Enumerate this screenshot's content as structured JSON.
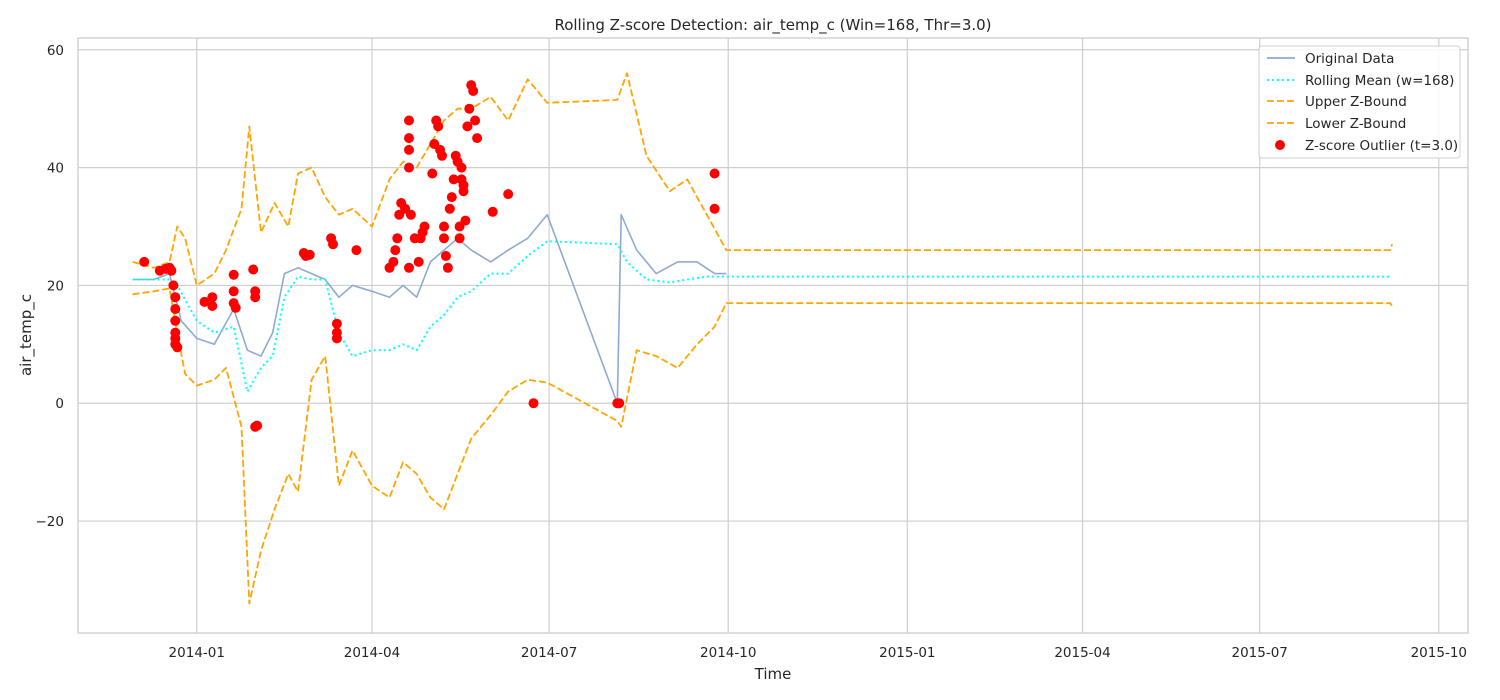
{
  "chart_data": {
    "type": "line",
    "title": "Rolling Z-score Detection: air_temp_c (Win=168, Thr=3.0)",
    "xlabel": "Time",
    "ylabel": "air_temp_c",
    "xlim": [
      "2013-11-01",
      "2015-10-16"
    ],
    "ylim": [
      -39,
      62
    ],
    "x_ticks": [
      "2014-01",
      "2014-04",
      "2014-07",
      "2014-10",
      "2015-01",
      "2015-04",
      "2015-07",
      "2015-10"
    ],
    "y_ticks": [
      -20,
      0,
      20,
      40,
      60
    ],
    "y_tick_labels": [
      "−20",
      "0",
      "20",
      "40",
      "60"
    ],
    "grid": true,
    "legend_position": "top-right",
    "colors": {
      "original": "#8eaad1",
      "mean": "#00ffff",
      "bound": "#ffa500",
      "outlier": "#ff0000"
    },
    "series": [
      {
        "name": "Original Data",
        "style": "solid",
        "x": [
          "2013-11-29",
          "2013-12-10",
          "2013-12-18",
          "2013-12-24",
          "2014-01-01",
          "2014-01-10",
          "2014-01-20",
          "2014-01-27",
          "2014-02-03",
          "2014-02-09",
          "2014-02-15",
          "2014-02-22",
          "2014-03-01",
          "2014-03-08",
          "2014-03-15",
          "2014-03-22",
          "2014-04-01",
          "2014-04-10",
          "2014-04-17",
          "2014-04-24",
          "2014-05-01",
          "2014-05-08",
          "2014-05-15",
          "2014-05-22",
          "2014-06-01",
          "2014-06-10",
          "2014-06-20",
          "2014-06-30",
          "2014-08-05",
          "2014-08-07",
          "2014-08-15",
          "2014-08-25",
          "2014-09-05",
          "2014-09-15",
          "2014-09-24",
          "2014-09-30"
        ],
        "y": [
          21,
          21,
          22,
          14,
          11,
          10,
          16,
          9,
          8,
          12,
          22,
          23,
          22,
          21,
          18,
          20,
          19,
          18,
          20,
          18,
          24,
          26,
          28,
          26,
          24,
          26,
          28,
          32,
          0,
          32,
          26,
          22,
          24,
          24,
          22,
          22
        ]
      },
      {
        "name": "Rolling Mean (w=168)",
        "style": "dotted",
        "x": [
          "2013-11-29",
          "2013-12-10",
          "2013-12-18",
          "2013-12-22",
          "2014-01-01",
          "2014-01-10",
          "2014-01-20",
          "2014-01-27",
          "2014-02-03",
          "2014-02-09",
          "2014-02-15",
          "2014-02-22",
          "2014-03-01",
          "2014-03-08",
          "2014-03-15",
          "2014-03-22",
          "2014-04-01",
          "2014-04-10",
          "2014-04-17",
          "2014-04-24",
          "2014-05-01",
          "2014-05-08",
          "2014-05-15",
          "2014-05-22",
          "2014-06-01",
          "2014-06-10",
          "2014-06-20",
          "2014-06-30",
          "2014-08-05",
          "2014-08-10",
          "2014-08-20",
          "2014-09-01",
          "2014-09-10",
          "2014-09-20",
          "2014-09-30",
          "2015-09-07"
        ],
        "y": [
          21,
          21,
          21,
          20,
          14,
          12,
          13,
          2,
          6,
          8,
          18,
          21.5,
          21,
          21,
          12,
          8,
          9,
          9,
          10,
          9,
          13,
          15,
          18,
          19,
          22,
          22,
          25,
          27.5,
          27,
          24,
          21,
          20.5,
          21,
          21.5,
          21.5,
          21.5
        ]
      },
      {
        "name": "Upper Z-Bound",
        "style": "dashed",
        "x": [
          "2013-11-29",
          "2013-12-10",
          "2013-12-18",
          "2013-12-22",
          "2013-12-26",
          "2014-01-01",
          "2014-01-10",
          "2014-01-16",
          "2014-01-24",
          "2014-01-28",
          "2014-02-03",
          "2014-02-10",
          "2014-02-17",
          "2014-02-22",
          "2014-03-01",
          "2014-03-08",
          "2014-03-15",
          "2014-03-22",
          "2014-04-01",
          "2014-04-10",
          "2014-04-17",
          "2014-04-24",
          "2014-05-01",
          "2014-05-08",
          "2014-05-15",
          "2014-05-22",
          "2014-06-01",
          "2014-06-10",
          "2014-06-20",
          "2014-06-30",
          "2014-08-05",
          "2014-08-10",
          "2014-08-20",
          "2014-09-01",
          "2014-09-10",
          "2014-09-20",
          "2014-09-30",
          "2015-09-06",
          "2015-09-07"
        ],
        "y": [
          24,
          23,
          24,
          30,
          28,
          20,
          22,
          26,
          33,
          47,
          29,
          34,
          30,
          39,
          40,
          35,
          32,
          33,
          30,
          38,
          41,
          40,
          44,
          48,
          50,
          50,
          52,
          48,
          55,
          51,
          51.5,
          56,
          42,
          36,
          38,
          32,
          26,
          26,
          27
        ]
      },
      {
        "name": "Lower Z-Bound",
        "style": "dashed",
        "x": [
          "2013-11-29",
          "2013-12-10",
          "2013-12-18",
          "2013-12-22",
          "2013-12-26",
          "2014-01-01",
          "2014-01-10",
          "2014-01-16",
          "2014-01-24",
          "2014-01-28",
          "2014-02-03",
          "2014-02-10",
          "2014-02-17",
          "2014-02-22",
          "2014-03-01",
          "2014-03-08",
          "2014-03-15",
          "2014-03-22",
          "2014-04-01",
          "2014-04-10",
          "2014-04-17",
          "2014-04-24",
          "2014-05-01",
          "2014-05-08",
          "2014-05-15",
          "2014-05-22",
          "2014-06-01",
          "2014-06-10",
          "2014-06-20",
          "2014-06-30",
          "2014-08-05",
          "2014-08-07",
          "2014-08-15",
          "2014-08-25",
          "2014-09-05",
          "2014-09-15",
          "2014-09-24",
          "2014-09-30",
          "2015-09-06",
          "2015-09-07"
        ],
        "y": [
          18.5,
          19,
          19.5,
          12,
          5,
          3,
          4,
          6,
          -4,
          -34,
          -25,
          -18,
          -12,
          -15,
          4,
          8,
          -14,
          -8,
          -14,
          -16,
          -10,
          -12,
          -16,
          -18,
          -12,
          -6,
          -2,
          2,
          4,
          3.5,
          -3,
          -4,
          9,
          8,
          6,
          10,
          13,
          17,
          17,
          16.5
        ]
      }
    ],
    "outliers": {
      "name": "Z-score Outlier (t=3.0)",
      "x": [
        "2013-12-05",
        "2013-12-13",
        "2013-12-16",
        "2013-12-18",
        "2013-12-19",
        "2013-12-20",
        "2013-12-21",
        "2013-12-21",
        "2013-12-21",
        "2013-12-21",
        "2013-12-21",
        "2013-12-21",
        "2013-12-22",
        "2014-01-05",
        "2014-01-09",
        "2014-01-09",
        "2014-01-20",
        "2014-01-20",
        "2014-01-20",
        "2014-01-21",
        "2014-01-30",
        "2014-01-31",
        "2014-01-31",
        "2014-01-31",
        "2014-02-01",
        "2014-02-25",
        "2014-02-26",
        "2014-02-28",
        "2014-03-11",
        "2014-03-12",
        "2014-03-14",
        "2014-03-14",
        "2014-03-14",
        "2014-03-24",
        "2014-04-10",
        "2014-04-12",
        "2014-04-13",
        "2014-04-14",
        "2014-04-15",
        "2014-04-16",
        "2014-04-18",
        "2014-04-20",
        "2014-04-20",
        "2014-04-20",
        "2014-04-20",
        "2014-04-20",
        "2014-04-21",
        "2014-04-23",
        "2014-04-25",
        "2014-04-26",
        "2014-04-27",
        "2014-04-28",
        "2014-05-02",
        "2014-05-03",
        "2014-05-04",
        "2014-05-05",
        "2014-05-06",
        "2014-05-07",
        "2014-05-08",
        "2014-05-08",
        "2014-05-09",
        "2014-05-10",
        "2014-05-11",
        "2014-05-12",
        "2014-05-13",
        "2014-05-14",
        "2014-05-15",
        "2014-05-16",
        "2014-05-16",
        "2014-05-17",
        "2014-05-17",
        "2014-05-18",
        "2014-05-18",
        "2014-05-19",
        "2014-05-20",
        "2014-05-21",
        "2014-05-22",
        "2014-05-23",
        "2014-05-24",
        "2014-05-25",
        "2014-06-02",
        "2014-06-10",
        "2014-06-23",
        "2014-08-05",
        "2014-08-06",
        "2014-09-24",
        "2014-09-24"
      ],
      "y": [
        24,
        22.5,
        22.8,
        23,
        22.5,
        20,
        18,
        16,
        14,
        12,
        11,
        10,
        9.5,
        17.2,
        18,
        16.5,
        21.8,
        19,
        17,
        16.2,
        22.7,
        19,
        18,
        -4,
        -3.8,
        25.5,
        25,
        25.2,
        28,
        27,
        13.5,
        12,
        11,
        26,
        23,
        24,
        26,
        28,
        32,
        34,
        33,
        48,
        45,
        43,
        40,
        23,
        32,
        28,
        24,
        28,
        29,
        30,
        39,
        44,
        48,
        47,
        43,
        42,
        30,
        28,
        25,
        23,
        33,
        35,
        38,
        42,
        41,
        30,
        28,
        40,
        38,
        37,
        36,
        31,
        47,
        50,
        54,
        53,
        48,
        45,
        32.5,
        35.5,
        0,
        0,
        0,
        39,
        33
      ]
    }
  },
  "legend": {
    "original": "Original Data",
    "mean": "Rolling Mean (w=168)",
    "upper": "Upper Z-Bound",
    "lower": "Lower Z-Bound",
    "outlier": "Z-score Outlier (t=3.0)"
  }
}
